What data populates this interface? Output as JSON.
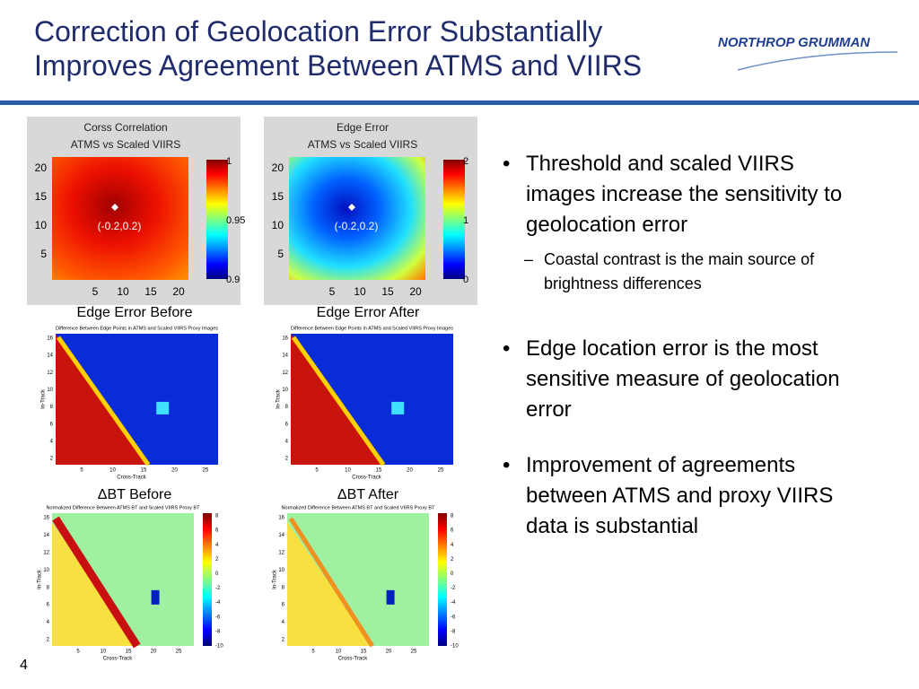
{
  "header": {
    "title_lines": [
      "Correction of Geolocation Error Substantially",
      "Improves Agreement Between ATMS and VIIRS"
    ],
    "logo": "NORTHROP GRUMMAN"
  },
  "panels": [
    {
      "title_lines": [
        "Corss Correlation",
        "ATMS vs Scaled VIIRS"
      ],
      "yticks": [
        "20",
        "15",
        "10",
        "5"
      ],
      "xticks": [
        "5",
        "10",
        "15",
        "20"
      ],
      "colorbar_ticks": [
        "1",
        "0.95",
        "0.9"
      ],
      "annotation": "(-0.2,0.2)"
    },
    {
      "title_lines": [
        "Edge Error",
        "ATMS vs Scaled VIIRS"
      ],
      "yticks": [
        "20",
        "15",
        "10",
        "5"
      ],
      "xticks": [
        "5",
        "10",
        "15",
        "20"
      ],
      "colorbar_ticks": [
        "2",
        "1",
        "0"
      ],
      "annotation": "(-0.2,0.2)"
    }
  ],
  "captions": [
    "Edge Error Before",
    "Edge Error After",
    "ΔBT Before",
    "ΔBT After"
  ],
  "small_plots": [
    {
      "title": "Difference Between Edge Points in ATMS and Scaled VIIRS Proxy Images",
      "xlabel": "Cross-Track",
      "ylabel": "In-Track",
      "yticks": [
        "16",
        "14",
        "12",
        "10",
        "8",
        "6",
        "4",
        "2"
      ],
      "xticks": [
        "5",
        "10",
        "15",
        "20",
        "25"
      ]
    },
    {
      "title": "Difference Between Edge Points in ATMS and Scaled VIIRS Proxy Images",
      "xlabel": "Cross-Track",
      "ylabel": "In-Track",
      "yticks": [
        "16",
        "14",
        "12",
        "10",
        "8",
        "6",
        "4",
        "2"
      ],
      "xticks": [
        "5",
        "10",
        "15",
        "20",
        "25"
      ]
    },
    {
      "title": "Normalized Difference Between ATMS BT and Scaled VIIRS Proxy BT",
      "xlabel": "Cross-Track",
      "ylabel": "In-Track",
      "yticks": [
        "16",
        "14",
        "12",
        "10",
        "8",
        "6",
        "4",
        "2"
      ],
      "xticks": [
        "5",
        "10",
        "15",
        "20",
        "25"
      ],
      "colorbar_ticks": [
        "8",
        "6",
        "4",
        "2",
        "0",
        "-2",
        "-4",
        "-6",
        "-8",
        "-10"
      ]
    },
    {
      "title": "Normalized Difference Between ATMS BT and Scaled VIIRS Proxy BT",
      "xlabel": "Cross-Track",
      "ylabel": "In-Track",
      "yticks": [
        "16",
        "14",
        "12",
        "10",
        "8",
        "6",
        "4",
        "2"
      ],
      "xticks": [
        "5",
        "10",
        "15",
        "20",
        "25"
      ],
      "colorbar_ticks": [
        "8",
        "6",
        "4",
        "2",
        "0",
        "-2",
        "-4",
        "-6",
        "-8",
        "-10"
      ]
    }
  ],
  "bullets": [
    {
      "text": "Threshold and scaled VIIRS images increase the sensitivity to geolocation error",
      "sub": [
        "Coastal contrast is the main source of brightness differences"
      ]
    },
    {
      "text": "Edge location error is the most sensitive measure of geolocation error"
    },
    {
      "text": "Improvement of agreements between ATMS and proxy VIIRS data is substantial"
    }
  ],
  "page_number": "4"
}
